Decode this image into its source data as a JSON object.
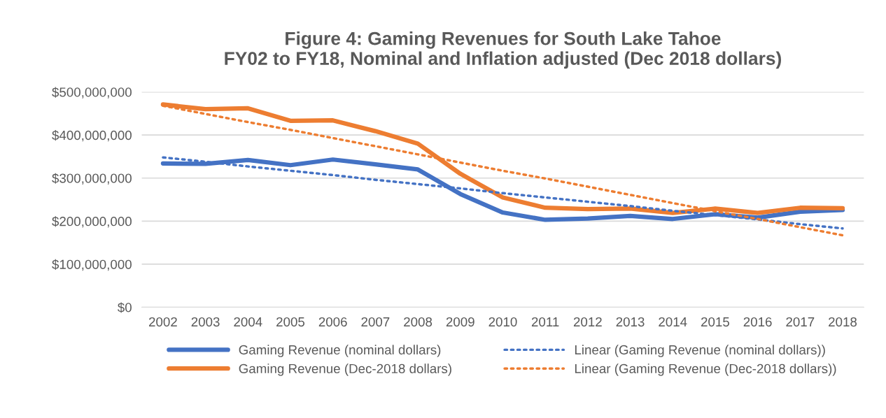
{
  "chart_data": {
    "type": "line",
    "title": "Figure 4: Gaming Revenues for South Lake Tahoe\nFY02 to FY18, Nominal and Inflation adjusted (Dec 2018 dollars)",
    "categories": [
      "2002",
      "2003",
      "2004",
      "2005",
      "2006",
      "2007",
      "2008",
      "2009",
      "2010",
      "2011",
      "2012",
      "2013",
      "2014",
      "2015",
      "2016",
      "2017",
      "2018"
    ],
    "series": [
      {
        "name": "Gaming Revenue (nominal dollars)",
        "color": "#4472c4",
        "line_style": "solid",
        "values": [
          334000000,
          333000000,
          342000000,
          330000000,
          343000000,
          332000000,
          320000000,
          263000000,
          220000000,
          203000000,
          206000000,
          212000000,
          205000000,
          216000000,
          208000000,
          222000000,
          226000000
        ]
      },
      {
        "name": "Gaming Revenue (Dec-2018 dollars)",
        "color": "#ed7d31",
        "line_style": "solid",
        "values": [
          471000000,
          460000000,
          462000000,
          433000000,
          434000000,
          409000000,
          380000000,
          310000000,
          255000000,
          231000000,
          228000000,
          229000000,
          219000000,
          229000000,
          219000000,
          231000000,
          230000000
        ]
      },
      {
        "name": "Linear (Gaming Revenue (nominal dollars))",
        "color": "#4472c4",
        "line_style": "dotted",
        "values": [
          348000000,
          338000000,
          327000000,
          317000000,
          307000000,
          296000000,
          286000000,
          276000000,
          265000000,
          255000000,
          245000000,
          235000000,
          224000000,
          214000000,
          204000000,
          193000000,
          183000000
        ]
      },
      {
        "name": "Linear (Gaming Revenue (Dec-2018 dollars))",
        "color": "#ed7d31",
        "line_style": "dotted",
        "values": [
          468000000,
          449000000,
          430000000,
          412000000,
          393000000,
          374000000,
          355000000,
          336000000,
          317000000,
          299000000,
          280000000,
          261000000,
          242000000,
          223000000,
          205000000,
          186000000,
          167000000
        ]
      }
    ],
    "ylim": [
      0,
      500000000
    ],
    "yticks": [
      {
        "value": 0,
        "label": "$0"
      },
      {
        "value": 100000000,
        "label": "$100,000,000"
      },
      {
        "value": 200000000,
        "label": "$200,000,000"
      },
      {
        "value": 300000000,
        "label": "$300,000,000"
      },
      {
        "value": 400000000,
        "label": "$400,000,000"
      },
      {
        "value": 500000000,
        "label": "$500,000,000"
      }
    ],
    "grid": "y",
    "legend": "bottom",
    "marker": "none"
  }
}
